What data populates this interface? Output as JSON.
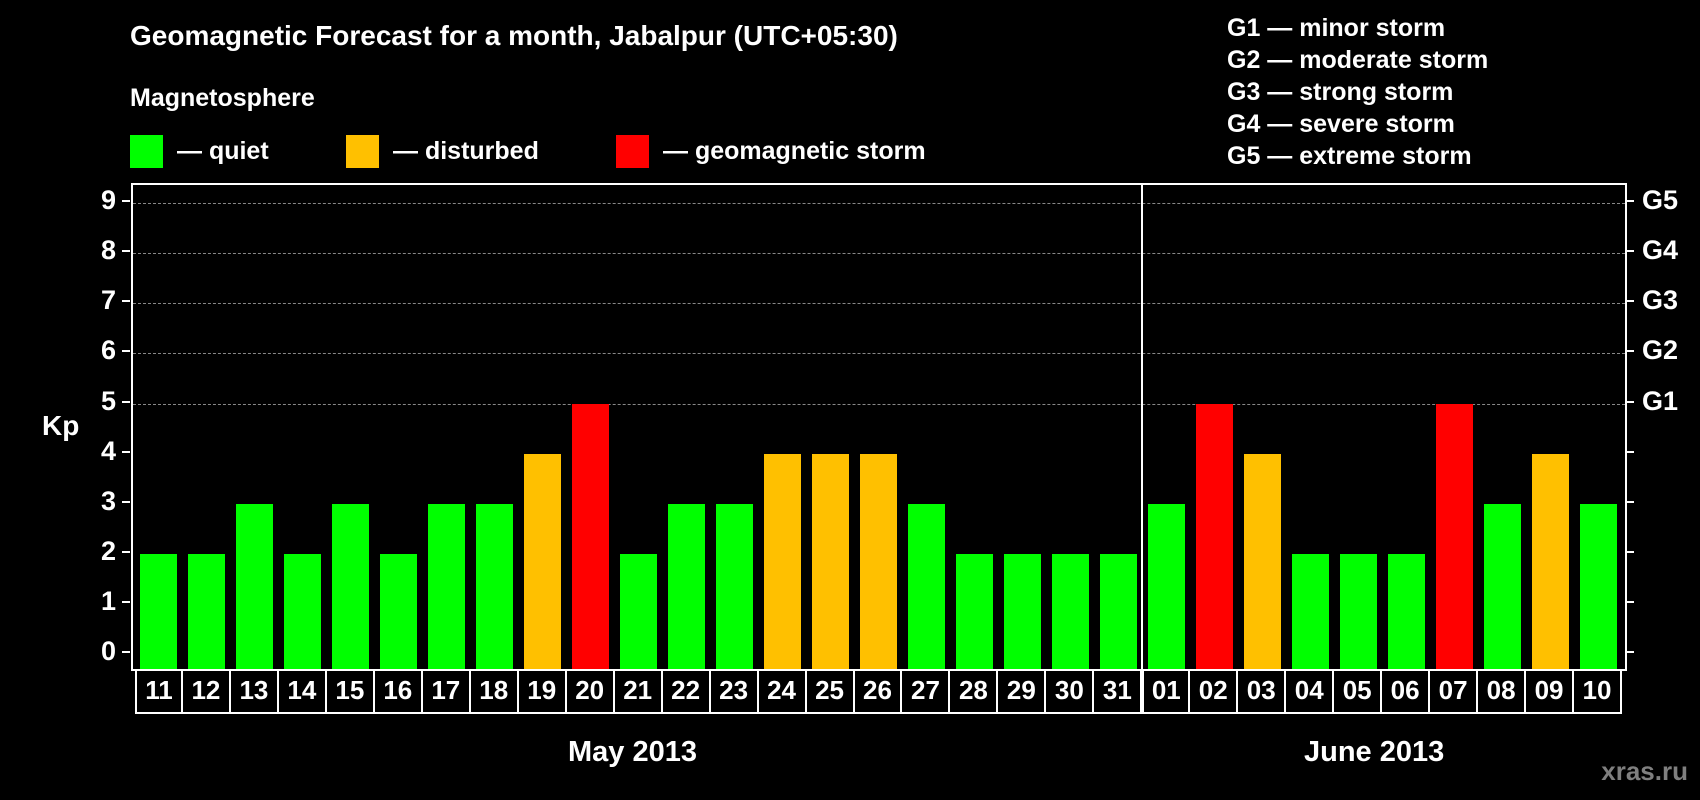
{
  "header": {
    "title": "Geomagnetic Forecast for a month, Jabalpur (UTC+05:30)",
    "subtitle": "Magnetosphere"
  },
  "legend": {
    "items": [
      {
        "label": "— quiet",
        "color": "#00ff00"
      },
      {
        "label": "— disturbed",
        "color": "#ffc000"
      },
      {
        "label": "— geomagnetic storm",
        "color": "#ff0000"
      }
    ]
  },
  "storm_scale": {
    "items": [
      "G1 — minor storm",
      "G2 — moderate storm",
      "G3 — strong storm",
      "G4 — severe storm",
      "G5 — extreme storm"
    ]
  },
  "axes": {
    "ylabel": "Kp",
    "yticks": [
      "0",
      "1",
      "2",
      "3",
      "4",
      "5",
      "6",
      "7",
      "8",
      "9"
    ],
    "right_ticks": [
      {
        "kp": 5,
        "label": "G1"
      },
      {
        "kp": 6,
        "label": "G2"
      },
      {
        "kp": 7,
        "label": "G3"
      },
      {
        "kp": 8,
        "label": "G4"
      },
      {
        "kp": 9,
        "label": "G5"
      }
    ]
  },
  "months": {
    "first": "May 2013",
    "second": "June 2013"
  },
  "watermark": "xras.ru",
  "chart_data": {
    "type": "bar",
    "title": "Geomagnetic Forecast for a month, Jabalpur (UTC+05:30)",
    "xlabel": "May 2013 / June 2013",
    "ylabel": "Kp",
    "ylim": [
      0,
      9
    ],
    "grid": true,
    "legend_position": "top",
    "categories": [
      "11",
      "12",
      "13",
      "14",
      "15",
      "16",
      "17",
      "18",
      "19",
      "20",
      "21",
      "22",
      "23",
      "24",
      "25",
      "26",
      "27",
      "28",
      "29",
      "30",
      "31",
      "01",
      "02",
      "03",
      "04",
      "05",
      "06",
      "07",
      "08",
      "09",
      "10"
    ],
    "values": [
      2,
      2,
      3,
      2,
      3,
      2,
      3,
      3,
      4,
      5,
      2,
      3,
      3,
      4,
      4,
      4,
      3,
      2,
      2,
      2,
      2,
      3,
      5,
      4,
      2,
      2,
      2,
      5,
      3,
      4,
      3
    ],
    "status": [
      "quiet",
      "quiet",
      "quiet",
      "quiet",
      "quiet",
      "quiet",
      "quiet",
      "quiet",
      "disturbed",
      "storm",
      "quiet",
      "quiet",
      "quiet",
      "disturbed",
      "disturbed",
      "disturbed",
      "quiet",
      "quiet",
      "quiet",
      "quiet",
      "quiet",
      "quiet",
      "storm",
      "disturbed",
      "quiet",
      "quiet",
      "quiet",
      "storm",
      "quiet",
      "disturbed",
      "quiet"
    ],
    "colors": {
      "quiet": "#00ff00",
      "disturbed": "#ffc000",
      "storm": "#ff0000"
    },
    "month_split_after_index": 20,
    "right_axis": {
      "G1": 5,
      "G2": 6,
      "G3": 7,
      "G4": 8,
      "G5": 9
    }
  }
}
